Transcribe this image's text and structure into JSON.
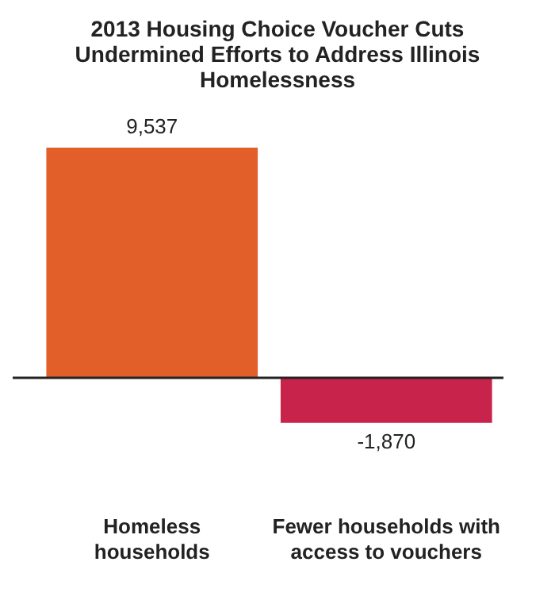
{
  "chart_data": {
    "type": "bar",
    "title": "2013 Housing Choice Voucher Cuts Undermined Efforts to Address Illinois Homelessness",
    "categories": [
      "Homeless households",
      "Fewer households with access to vouchers"
    ],
    "values": [
      9537,
      -1870
    ],
    "colors": [
      "#e35f29",
      "#c8234a"
    ],
    "value_labels": [
      "9,537",
      "-1,870"
    ],
    "grid": false,
    "legend": false
  }
}
